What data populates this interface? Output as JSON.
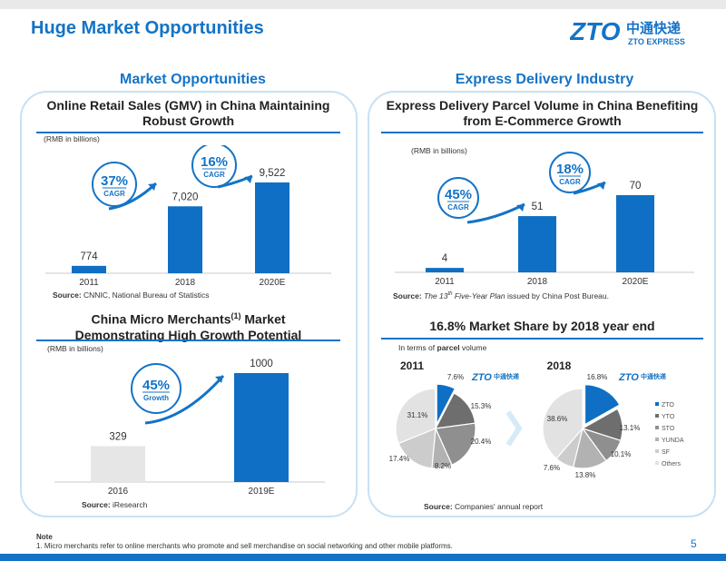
{
  "header": {
    "title": "Huge Market Opportunities",
    "logo_cn": "中通快递",
    "logo_en": "ZTO EXPRESS",
    "logo_mark": "ZTO"
  },
  "left_section_title": "Market Opportunities",
  "right_section_title": "Express Delivery Industry",
  "chart_data": [
    {
      "type": "bar",
      "title": "Online Retail Sales (GMV) in China Maintaining  Robust Growth",
      "unit_note": "(RMB in billions)",
      "categories": [
        "2011",
        "2018",
        "2020E"
      ],
      "values": [
        774,
        7020,
        9522
      ],
      "value_labels": [
        "774",
        "7,020",
        "9,522"
      ],
      "callouts": [
        {
          "value": "37%",
          "label": "CAGR"
        },
        {
          "value": "16%",
          "label": "CAGR"
        }
      ],
      "source_label": "Source:",
      "source": "CNNIC, National Bureau of Statistics",
      "colors": [
        "#0f6fc4"
      ]
    },
    {
      "type": "bar",
      "title_main": "China Micro Merchants",
      "title_sup": "(1)",
      "title_rest": " Market",
      "title_line2": "Demonstrating High Growth Potential",
      "unit_note": "(RMB in billions)",
      "categories": [
        "2016",
        "2019E"
      ],
      "values": [
        329,
        1000
      ],
      "value_labels": [
        "329",
        "1000"
      ],
      "callouts": [
        {
          "value": "45%",
          "label": "Growth"
        }
      ],
      "source_label": "Source:",
      "source": "iResearch",
      "colors": [
        "#e6e6e6",
        "#0f6fc4"
      ]
    },
    {
      "type": "bar",
      "title": "Express Delivery Parcel Volume in China Benefiting from E-Commerce Growth",
      "unit_note": "(RMB in billions)",
      "categories": [
        "2011",
        "2018",
        "2020E"
      ],
      "values": [
        4,
        51,
        70
      ],
      "value_labels": [
        "4",
        "51",
        "70"
      ],
      "callouts": [
        {
          "value": "45%",
          "label": "CAGR"
        },
        {
          "value": "18%",
          "label": "CAGR"
        }
      ],
      "source_label": "Source:",
      "source_pre": "The 13",
      "source_sup": "th",
      "source_post": " Five-Year Plan",
      "source_tail": " issued by China Post Bureau.",
      "colors": [
        "#0f6fc4"
      ]
    },
    {
      "type": "pie",
      "title": "16.8% Market Share by 2018 year end",
      "subtitle_pre": "In terms of ",
      "subtitle_bold": "parcel",
      "subtitle_post": " volume",
      "legend": [
        "ZTO",
        "YTO",
        "STO",
        "YUNDA",
        "SF",
        "Others"
      ],
      "colors": [
        "#0f6fc4",
        "#6e6e6e",
        "#8f8f8f",
        "#b2b2b2",
        "#cccccc",
        "#e2e2e2"
      ],
      "pies": [
        {
          "year": "2011",
          "values": [
            7.6,
            15.3,
            20.4,
            8.2,
            17.4,
            31.1
          ],
          "labels": [
            "7.6%",
            "15.3%",
            "20.4%",
            "8.2%",
            "17.4%",
            "31.1%"
          ]
        },
        {
          "year": "2018",
          "values": [
            16.8,
            13.1,
            10.1,
            13.8,
            7.6,
            38.6
          ],
          "labels": [
            "16.8%",
            "13.1%",
            "10.1%",
            "13.8%",
            "7.6%",
            "38.6%"
          ]
        }
      ],
      "source_label": "Source:",
      "source": "Companies' annual report"
    }
  ],
  "note": {
    "label": "Note",
    "text": "1. Micro merchants refer to online merchants who promote and sell merchandise on social networking and other mobile platforms."
  },
  "page_number": "5"
}
